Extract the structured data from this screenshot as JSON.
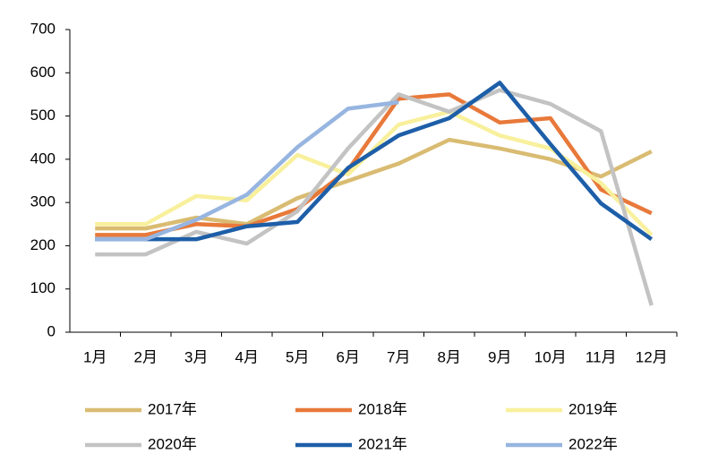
{
  "chart_data": {
    "type": "line",
    "categories": [
      "1月",
      "2月",
      "3月",
      "4月",
      "5月",
      "6月",
      "7月",
      "8月",
      "9月",
      "10月",
      "11月",
      "12月"
    ],
    "series": [
      {
        "name": "2017年",
        "color": "#d9bc72",
        "values": [
          240,
          240,
          265,
          250,
          310,
          350,
          390,
          445,
          425,
          400,
          360,
          418
        ]
      },
      {
        "name": "2018年",
        "color": "#e8793a",
        "values": [
          225,
          225,
          250,
          245,
          285,
          375,
          540,
          550,
          485,
          495,
          330,
          275
        ]
      },
      {
        "name": "2019年",
        "color": "#f8f09c",
        "values": [
          250,
          250,
          315,
          305,
          410,
          365,
          480,
          510,
          455,
          425,
          345,
          225
        ]
      },
      {
        "name": "2020年",
        "color": "#c3c3c3",
        "values": [
          180,
          180,
          232,
          205,
          280,
          425,
          550,
          510,
          560,
          528,
          465,
          62
        ]
      },
      {
        "name": "2021年",
        "color": "#1d5ea8",
        "values": [
          215,
          215,
          215,
          245,
          255,
          380,
          455,
          495,
          577,
          435,
          298,
          215
        ]
      },
      {
        "name": "2022年",
        "color": "#97b5e0",
        "values": [
          215,
          215,
          260,
          318,
          428,
          517,
          532,
          null,
          null,
          null,
          null,
          null
        ]
      }
    ],
    "ylim": [
      0,
      700
    ],
    "yticks": [
      0,
      100,
      200,
      300,
      400,
      500,
      600,
      700
    ],
    "grid": false,
    "legend": "bottom"
  }
}
